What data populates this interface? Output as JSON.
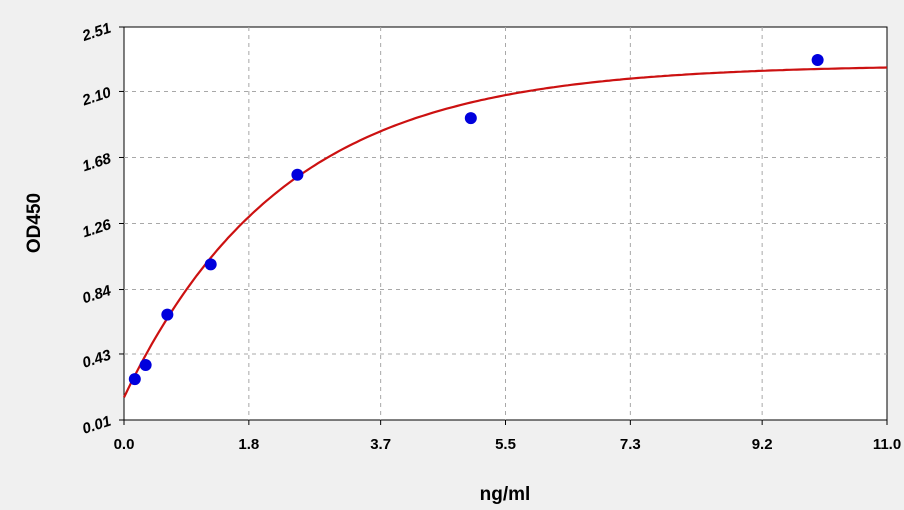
{
  "chart_data": {
    "type": "scatter",
    "xlabel": "ng/ml",
    "ylabel": "OD450",
    "x_ticks": [
      "0.0",
      "1.8",
      "3.7",
      "5.5",
      "7.3",
      "9.2",
      "11.0"
    ],
    "y_ticks": [
      "0.01",
      "0.43",
      "0.84",
      "1.26",
      "1.68",
      "2.10",
      "2.51"
    ],
    "xlim": [
      0.0,
      11.0
    ],
    "ylim": [
      0.01,
      2.51
    ],
    "grid": true,
    "series": [
      {
        "type": "scatter",
        "color": "#0000dd",
        "points": [
          {
            "x": 0.156,
            "y": 0.27
          },
          {
            "x": 0.312,
            "y": 0.36
          },
          {
            "x": 0.625,
            "y": 0.68
          },
          {
            "x": 1.25,
            "y": 1.0
          },
          {
            "x": 2.5,
            "y": 1.57
          },
          {
            "x": 5.0,
            "y": 1.93
          },
          {
            "x": 10.0,
            "y": 2.3
          }
        ]
      },
      {
        "type": "line",
        "color": "#cc1111",
        "fit": {
          "model": "exponential_rise",
          "a": 2.27,
          "b": 0.154,
          "k": 0.435
        }
      }
    ]
  },
  "colors": {
    "plot_background": "#ffffff",
    "page_background": "#f0f0f0"
  }
}
